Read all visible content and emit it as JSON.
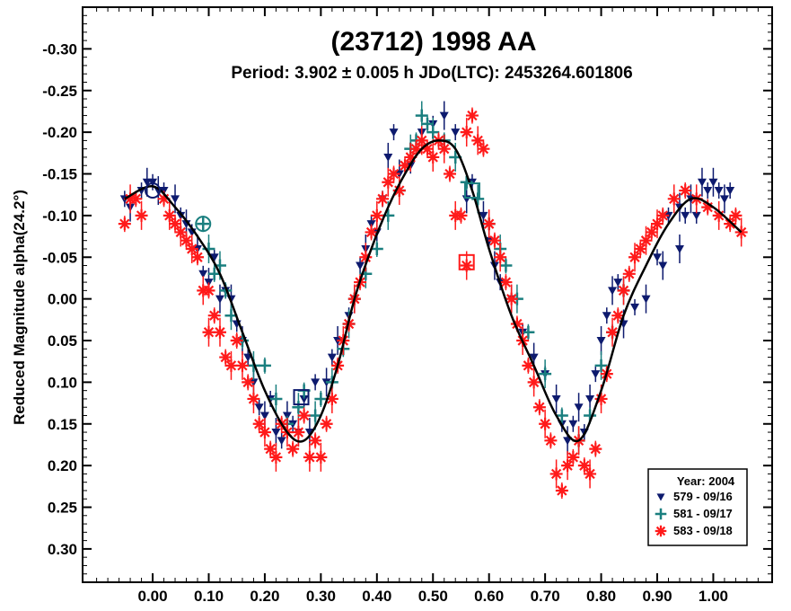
{
  "chart_data": {
    "type": "scatter",
    "title": "(23712) 1998 AA",
    "subtitle": "Period: 3.902 ± 0.005 h      JDo(LTC): 2453264.601806",
    "xlabel": "",
    "ylabel": "Reduced Magnitude alpha(24.2°)",
    "xlim": [
      -0.125,
      1.105
    ],
    "ylim": [
      -0.35,
      0.34
    ],
    "y_inverted": true,
    "x_ticks": [
      0.0,
      0.1,
      0.2,
      0.3,
      0.4,
      0.5,
      0.6,
      0.7,
      0.8,
      0.9,
      1.0
    ],
    "x_tick_labels": [
      "0.00",
      "0.10",
      "0.20",
      "0.30",
      "0.40",
      "0.50",
      "0.60",
      "0.70",
      "0.80",
      "0.90",
      "1.00"
    ],
    "y_ticks": [
      -0.3,
      -0.25,
      -0.2,
      -0.15,
      -0.1,
      -0.05,
      0.0,
      0.05,
      0.1,
      0.15,
      0.2,
      0.25,
      0.3
    ],
    "y_tick_labels": [
      "-0.30",
      "-0.25",
      "-0.20",
      "-0.15",
      "-0.10",
      "-0.05",
      "0.00",
      "0.05",
      "0.10",
      "0.15",
      "0.20",
      "0.25",
      "0.30"
    ],
    "grid": false,
    "legend": {
      "placement": "bottom-right",
      "title": "Year: 2004",
      "entries": [
        "579 - 09/16",
        "581 - 09/17",
        "583 - 09/18"
      ]
    },
    "fit_curve": {
      "color": "#000000",
      "points": [
        [
          -0.05,
          -0.12
        ],
        [
          0.0,
          -0.135
        ],
        [
          0.04,
          -0.11
        ],
        [
          0.08,
          -0.075
        ],
        [
          0.12,
          -0.03
        ],
        [
          0.16,
          0.04
        ],
        [
          0.2,
          0.11
        ],
        [
          0.24,
          0.16
        ],
        [
          0.27,
          0.17
        ],
        [
          0.3,
          0.14
        ],
        [
          0.33,
          0.08
        ],
        [
          0.36,
          0.0
        ],
        [
          0.39,
          -0.06
        ],
        [
          0.42,
          -0.11
        ],
        [
          0.45,
          -0.15
        ],
        [
          0.48,
          -0.18
        ],
        [
          0.51,
          -0.19
        ],
        [
          0.54,
          -0.18
        ],
        [
          0.57,
          -0.13
        ],
        [
          0.6,
          -0.06
        ],
        [
          0.64,
          0.02
        ],
        [
          0.68,
          0.08
        ],
        [
          0.72,
          0.14
        ],
        [
          0.76,
          0.17
        ],
        [
          0.8,
          0.11
        ],
        [
          0.84,
          0.02
        ],
        [
          0.88,
          -0.04
        ],
        [
          0.92,
          -0.09
        ],
        [
          0.96,
          -0.12
        ],
        [
          1.0,
          -0.11
        ],
        [
          1.05,
          -0.08
        ]
      ]
    },
    "series": [
      {
        "name": "579 - 09/16",
        "marker": "triangle-down",
        "color": "#0d1a6e",
        "points": [
          [
            -0.05,
            -0.12
          ],
          [
            -0.04,
            -0.11
          ],
          [
            -0.02,
            -0.13
          ],
          [
            -0.01,
            -0.14
          ],
          [
            0.0,
            -0.14
          ],
          [
            0.01,
            -0.13
          ],
          [
            0.02,
            -0.13
          ],
          [
            0.04,
            -0.12
          ],
          [
            0.05,
            -0.1
          ],
          [
            0.06,
            -0.09
          ],
          [
            0.07,
            -0.08
          ],
          [
            0.08,
            -0.06
          ],
          [
            0.09,
            -0.03
          ],
          [
            0.1,
            -0.02
          ],
          [
            0.11,
            -0.05
          ],
          [
            0.12,
            0.0
          ],
          [
            0.13,
            -0.01
          ],
          [
            0.14,
            0.0
          ],
          [
            0.15,
            0.03
          ],
          [
            0.16,
            0.05
          ],
          [
            0.17,
            0.07
          ],
          [
            0.18,
            0.1
          ],
          [
            0.19,
            0.13
          ],
          [
            0.2,
            0.14
          ],
          [
            0.21,
            0.12
          ],
          [
            0.22,
            0.16
          ],
          [
            0.23,
            0.17
          ],
          [
            0.24,
            0.14
          ],
          [
            0.25,
            0.15
          ],
          [
            0.26,
            0.16
          ],
          [
            0.27,
            0.12
          ],
          [
            0.28,
            0.16
          ],
          [
            0.29,
            0.1
          ],
          [
            0.31,
            0.1
          ],
          [
            0.32,
            0.07
          ],
          [
            0.33,
            0.05
          ],
          [
            0.35,
            0.02
          ],
          [
            0.36,
            0.0
          ],
          [
            0.37,
            -0.04
          ],
          [
            0.38,
            -0.06
          ],
          [
            0.39,
            -0.09
          ],
          [
            0.4,
            -0.08
          ],
          [
            0.41,
            -0.12
          ],
          [
            0.42,
            -0.17
          ],
          [
            0.43,
            -0.2
          ],
          [
            0.44,
            -0.15
          ],
          [
            0.46,
            -0.16
          ],
          [
            0.48,
            -0.2
          ],
          [
            0.5,
            -0.21
          ],
          [
            0.52,
            -0.22
          ],
          [
            0.54,
            -0.2
          ],
          [
            0.56,
            -0.12
          ],
          [
            0.57,
            -0.14
          ],
          [
            0.59,
            -0.1
          ],
          [
            0.6,
            -0.07
          ],
          [
            0.61,
            -0.04
          ],
          [
            0.62,
            -0.02
          ],
          [
            0.64,
            0.0
          ],
          [
            0.66,
            0.04
          ],
          [
            0.68,
            0.07
          ],
          [
            0.7,
            0.09
          ],
          [
            0.72,
            0.12
          ],
          [
            0.73,
            0.15
          ],
          [
            0.74,
            0.17
          ],
          [
            0.75,
            0.15
          ],
          [
            0.76,
            0.13
          ],
          [
            0.77,
            0.16
          ],
          [
            0.78,
            0.12
          ],
          [
            0.79,
            0.09
          ],
          [
            0.8,
            0.05
          ],
          [
            0.81,
            0.02
          ],
          [
            0.82,
            -0.01
          ],
          [
            0.83,
            -0.02
          ],
          [
            0.84,
            0.03
          ],
          [
            0.86,
            0.01
          ],
          [
            0.88,
            0.0
          ],
          [
            0.9,
            -0.05
          ],
          [
            0.91,
            -0.04
          ],
          [
            0.92,
            -0.1
          ],
          [
            0.94,
            -0.11
          ],
          [
            0.95,
            -0.1
          ],
          [
            0.96,
            -0.12
          ],
          [
            0.97,
            -0.1
          ],
          [
            0.98,
            -0.14
          ],
          [
            0.99,
            -0.13
          ],
          [
            1.0,
            -0.14
          ],
          [
            1.01,
            -0.13
          ],
          [
            1.02,
            -0.12
          ],
          [
            1.03,
            -0.13
          ],
          [
            0.94,
            -0.06
          ]
        ]
      },
      {
        "name": "581 - 09/17",
        "marker": "plus",
        "color": "#1a7f7f",
        "points": [
          [
            0.09,
            -0.09
          ],
          [
            0.1,
            -0.06
          ],
          [
            0.11,
            -0.03
          ],
          [
            0.12,
            -0.04
          ],
          [
            0.13,
            -0.01
          ],
          [
            0.14,
            0.02
          ],
          [
            0.16,
            0.05
          ],
          [
            0.18,
            0.08
          ],
          [
            0.2,
            0.08
          ],
          [
            0.22,
            0.12
          ],
          [
            0.24,
            0.15
          ],
          [
            0.26,
            0.13
          ],
          [
            0.27,
            0.11
          ],
          [
            0.29,
            0.14
          ],
          [
            0.3,
            0.12
          ],
          [
            0.32,
            0.1
          ],
          [
            0.34,
            0.06
          ],
          [
            0.35,
            0.03
          ],
          [
            0.36,
            0.0
          ],
          [
            0.38,
            -0.03
          ],
          [
            0.4,
            -0.06
          ],
          [
            0.42,
            -0.1
          ],
          [
            0.44,
            -0.13
          ],
          [
            0.46,
            -0.18
          ],
          [
            0.47,
            -0.19
          ],
          [
            0.48,
            -0.22
          ],
          [
            0.49,
            -0.21
          ],
          [
            0.5,
            -0.2
          ],
          [
            0.52,
            -0.19
          ],
          [
            0.54,
            -0.17
          ],
          [
            0.56,
            -0.14
          ],
          [
            0.58,
            -0.12
          ],
          [
            0.6,
            -0.09
          ],
          [
            0.62,
            -0.06
          ],
          [
            0.63,
            -0.04
          ],
          [
            0.65,
            0.0
          ],
          [
            0.67,
            0.04
          ],
          [
            0.7,
            0.09
          ],
          [
            0.73,
            0.14
          ],
          [
            0.76,
            0.17
          ],
          [
            0.78,
            0.14
          ],
          [
            0.8,
            0.08
          ],
          [
            0.82,
            0.04
          ],
          [
            0.84,
            -0.01
          ]
        ]
      },
      {
        "name": "583 - 09/18",
        "marker": "asterisk",
        "color": "#ff1a1a",
        "points": [
          [
            -0.05,
            -0.09
          ],
          [
            -0.04,
            -0.12
          ],
          [
            -0.03,
            -0.12
          ],
          [
            -0.02,
            -0.1
          ],
          [
            0.02,
            -0.12
          ],
          [
            0.03,
            -0.1
          ],
          [
            0.04,
            -0.09
          ],
          [
            0.05,
            -0.08
          ],
          [
            0.06,
            -0.07
          ],
          [
            0.07,
            -0.06
          ],
          [
            0.08,
            -0.05
          ],
          [
            0.09,
            -0.01
          ],
          [
            0.1,
            -0.01
          ],
          [
            0.1,
            0.04
          ],
          [
            0.11,
            0.02
          ],
          [
            0.12,
            0.04
          ],
          [
            0.13,
            0.07
          ],
          [
            0.14,
            0.08
          ],
          [
            0.15,
            0.05
          ],
          [
            0.16,
            0.08
          ],
          [
            0.17,
            0.1
          ],
          [
            0.18,
            0.12
          ],
          [
            0.19,
            0.15
          ],
          [
            0.2,
            0.16
          ],
          [
            0.21,
            0.18
          ],
          [
            0.22,
            0.19
          ],
          [
            0.23,
            0.15
          ],
          [
            0.24,
            0.16
          ],
          [
            0.25,
            0.18
          ],
          [
            0.26,
            0.16
          ],
          [
            0.27,
            0.14
          ],
          [
            0.28,
            0.19
          ],
          [
            0.29,
            0.17
          ],
          [
            0.3,
            0.19
          ],
          [
            0.31,
            0.15
          ],
          [
            0.32,
            0.12
          ],
          [
            0.33,
            0.08
          ],
          [
            0.34,
            0.05
          ],
          [
            0.35,
            0.03
          ],
          [
            0.36,
            0.0
          ],
          [
            0.37,
            -0.02
          ],
          [
            0.38,
            -0.05
          ],
          [
            0.39,
            -0.08
          ],
          [
            0.4,
            -0.1
          ],
          [
            0.41,
            -0.12
          ],
          [
            0.42,
            -0.14
          ],
          [
            0.43,
            -0.15
          ],
          [
            0.44,
            -0.13
          ],
          [
            0.45,
            -0.16
          ],
          [
            0.46,
            -0.17
          ],
          [
            0.47,
            -0.18
          ],
          [
            0.48,
            -0.19
          ],
          [
            0.49,
            -0.18
          ],
          [
            0.5,
            -0.17
          ],
          [
            0.51,
            -0.19
          ],
          [
            0.52,
            -0.18
          ],
          [
            0.53,
            -0.15
          ],
          [
            0.54,
            -0.1
          ],
          [
            0.55,
            -0.1
          ],
          [
            0.56,
            -0.2
          ],
          [
            0.57,
            -0.22
          ],
          [
            0.58,
            -0.19
          ],
          [
            0.59,
            -0.18
          ],
          [
            0.6,
            -0.09
          ],
          [
            0.61,
            -0.07
          ],
          [
            0.62,
            -0.05
          ],
          [
            0.63,
            -0.02
          ],
          [
            0.64,
            0.0
          ],
          [
            0.65,
            0.03
          ],
          [
            0.66,
            0.05
          ],
          [
            0.67,
            0.08
          ],
          [
            0.68,
            0.1
          ],
          [
            0.69,
            0.13
          ],
          [
            0.7,
            0.15
          ],
          [
            0.71,
            0.17
          ],
          [
            0.72,
            0.21
          ],
          [
            0.73,
            0.23
          ],
          [
            0.74,
            0.2
          ],
          [
            0.75,
            0.19
          ],
          [
            0.76,
            0.17
          ],
          [
            0.77,
            0.2
          ],
          [
            0.78,
            0.21
          ],
          [
            0.79,
            0.18
          ],
          [
            0.8,
            0.12
          ],
          [
            0.81,
            0.09
          ],
          [
            0.82,
            0.04
          ],
          [
            0.83,
            0.02
          ],
          [
            0.84,
            -0.01
          ],
          [
            0.85,
            -0.03
          ],
          [
            0.86,
            -0.05
          ],
          [
            0.87,
            -0.06
          ],
          [
            0.88,
            -0.07
          ],
          [
            0.89,
            -0.08
          ],
          [
            0.9,
            -0.09
          ],
          [
            0.91,
            -0.1
          ],
          [
            0.93,
            -0.12
          ],
          [
            0.95,
            -0.13
          ],
          [
            0.97,
            -0.12
          ],
          [
            0.99,
            -0.11
          ],
          [
            1.01,
            -0.1
          ],
          [
            1.03,
            -0.09
          ],
          [
            1.05,
            -0.08
          ],
          [
            1.04,
            -0.1
          ],
          [
            0.56,
            -0.04
          ]
        ]
      }
    ],
    "highlighted": [
      {
        "x": 0.0,
        "y": -0.13,
        "shape": "circle",
        "color": "#0d1a6e"
      },
      {
        "x": 0.09,
        "y": -0.09,
        "shape": "circle",
        "color": "#1a7f7f"
      },
      {
        "x": 0.265,
        "y": 0.118,
        "shape": "square",
        "color": "#0d1a6e"
      },
      {
        "x": 0.57,
        "y": -0.13,
        "shape": "square",
        "color": "#1a7f7f"
      },
      {
        "x": 0.56,
        "y": -0.044,
        "shape": "square",
        "color": "#ff1a1a"
      }
    ]
  }
}
